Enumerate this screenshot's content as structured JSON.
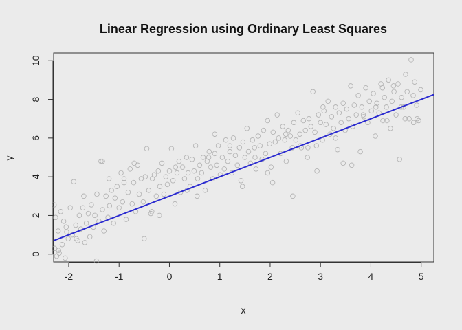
{
  "chart_data": {
    "type": "scatter",
    "title": "Linear Regression using Ordinary Least Squares",
    "xlabel": "x",
    "ylabel": "y",
    "xlim": [
      -2.3,
      5.25
    ],
    "ylim": [
      -0.4,
      10.4
    ],
    "xticks": [
      -2,
      -1,
      0,
      1,
      2,
      3,
      4,
      5
    ],
    "yticks": [
      0,
      2,
      4,
      6,
      8,
      10
    ],
    "grid": false,
    "legend": "none",
    "colors": {
      "points": "#b4b4b4",
      "line": "#2b2bd0",
      "background": "#ebebeb",
      "axes": "#333333"
    },
    "regression_line": {
      "intercept": 3.0,
      "slope": 1.0,
      "x": [
        -2.3,
        5.25
      ],
      "y": [
        0.7,
        8.25
      ]
    },
    "series": [
      {
        "x": [
          -2.29,
          -2.28,
          -2.26,
          -2.24,
          -2.21,
          -2.19,
          -2.16,
          -2.13,
          -2.1,
          -2.07,
          -2.04,
          -2.01,
          -1.97,
          -1.93,
          -1.9,
          -1.86,
          -1.82,
          -1.79,
          -1.76,
          -1.72,
          -1.68,
          -1.65,
          -1.61,
          -1.58,
          -1.55,
          -1.51,
          -1.48,
          -1.44,
          -1.4,
          -1.36,
          -1.33,
          -1.3,
          -1.26,
          -1.22,
          -1.19,
          -1.15,
          -1.11,
          -1.08,
          -1.04,
          -1.0,
          -0.96,
          -0.93,
          -0.9,
          -0.86,
          -0.82,
          -0.78,
          -0.74,
          -0.71,
          -0.67,
          -0.63,
          -0.6,
          -0.56,
          -0.52,
          -0.48,
          -0.45,
          -0.41,
          -0.37,
          -0.34,
          -0.3,
          -0.26,
          -0.22,
          -0.19,
          -0.15,
          -0.11,
          -0.07,
          -0.04,
          0.0,
          0.04,
          0.07,
          0.11,
          0.15,
          0.19,
          0.22,
          0.26,
          0.3,
          0.34,
          0.37,
          0.41,
          0.45,
          0.49,
          0.52,
          0.56,
          0.6,
          0.64,
          0.67,
          0.71,
          0.75,
          0.79,
          0.82,
          0.86,
          0.9,
          0.94,
          0.97,
          1.01,
          1.05,
          1.09,
          1.12,
          1.16,
          1.2,
          1.24,
          1.27,
          1.31,
          1.35,
          1.39,
          1.42,
          1.46,
          1.5,
          1.54,
          1.57,
          1.61,
          1.65,
          1.69,
          1.72,
          1.76,
          1.8,
          1.84,
          1.87,
          1.91,
          1.95,
          1.99,
          2.02,
          2.06,
          2.1,
          2.14,
          2.17,
          2.21,
          2.25,
          2.29,
          2.32,
          2.36,
          2.4,
          2.44,
          2.47,
          2.51,
          2.55,
          2.59,
          2.62,
          2.66,
          2.7,
          2.74,
          2.77,
          2.81,
          2.85,
          2.89,
          2.92,
          2.96,
          3.0,
          3.04,
          3.07,
          3.11,
          3.15,
          3.19,
          3.22,
          3.26,
          3.3,
          3.34,
          3.37,
          3.41,
          3.45,
          3.49,
          3.52,
          3.56,
          3.6,
          3.64,
          3.67,
          3.71,
          3.75,
          3.79,
          3.82,
          3.86,
          3.9,
          3.94,
          3.97,
          4.01,
          4.05,
          4.09,
          4.12,
          4.16,
          4.2,
          4.24,
          4.27,
          4.31,
          4.35,
          4.39,
          4.42,
          4.46,
          4.5,
          4.54,
          4.57,
          4.61,
          4.65,
          4.69,
          4.72,
          4.76,
          4.8,
          4.84,
          4.87,
          4.91,
          4.95,
          4.99,
          -1.85,
          -1.33,
          -0.35,
          0.12,
          1.45,
          2.31,
          2.93,
          3.62,
          4.23,
          4.68,
          -2.2,
          -1.7,
          -0.9,
          -0.5,
          0.35,
          0.9,
          1.7,
          2.45,
          3.05,
          3.85,
          4.45,
          4.85,
          -2.05,
          -1.2,
          -0.7,
          0.55,
          1.2,
          2.05,
          2.75,
          3.3,
          4.1,
          4.6,
          -1.45,
          -0.2,
          0.78,
          1.95,
          2.6,
          3.45,
          4.32,
          4.92
        ],
        "y": [
          2.55,
          0.3,
          1.9,
          -0.1,
          1.2,
          0.05,
          2.2,
          0.5,
          1.7,
          -0.2,
          1.15,
          0.8,
          2.4,
          1.0,
          3.75,
          1.5,
          0.7,
          2.0,
          1.3,
          2.4,
          0.6,
          1.6,
          2.1,
          0.9,
          2.55,
          1.4,
          2.0,
          3.1,
          1.7,
          4.8,
          2.3,
          1.2,
          3.0,
          1.9,
          2.5,
          3.3,
          1.6,
          2.9,
          3.5,
          2.4,
          4.2,
          2.7,
          3.9,
          1.8,
          3.2,
          4.4,
          2.6,
          3.7,
          2.2,
          4.6,
          3.1,
          3.9,
          2.7,
          4.0,
          5.45,
          3.3,
          2.1,
          3.9,
          4.1,
          3.0,
          4.3,
          3.5,
          4.7,
          3.1,
          4.0,
          3.6,
          4.3,
          5.45,
          3.8,
          2.6,
          4.2,
          4.8,
          3.2,
          4.5,
          3.9,
          5.0,
          4.2,
          3.5,
          4.9,
          4.3,
          5.6,
          3.9,
          4.6,
          4.2,
          5.0,
          3.3,
          4.8,
          5.3,
          4.5,
          3.9,
          5.2,
          4.6,
          5.6,
          4.1,
          5.0,
          4.4,
          5.9,
          4.8,
          5.3,
          4.2,
          6.0,
          5.1,
          4.6,
          5.5,
          3.8,
          5.8,
          5.0,
          6.5,
          5.3,
          4.7,
          5.9,
          5.5,
          4.4,
          6.1,
          5.6,
          4.9,
          6.4,
          5.2,
          6.9,
          5.7,
          4.5,
          6.3,
          5.8,
          7.2,
          6.0,
          5.2,
          6.6,
          5.9,
          4.8,
          6.4,
          6.1,
          5.5,
          6.8,
          5.9,
          7.3,
          6.2,
          5.5,
          6.9,
          6.4,
          5.0,
          7.0,
          6.6,
          8.4,
          6.3,
          5.6,
          7.2,
          6.8,
          5.9,
          7.4,
          6.7,
          7.9,
          6.2,
          7.1,
          6.5,
          7.6,
          5.4,
          7.3,
          6.8,
          7.8,
          6.4,
          7.5,
          7.0,
          8.7,
          6.6,
          7.7,
          7.2,
          8.2,
          5.3,
          7.6,
          7.1,
          8.6,
          6.8,
          7.9,
          7.4,
          8.3,
          6.1,
          7.8,
          7.3,
          8.8,
          6.9,
          8.1,
          7.6,
          9.0,
          6.5,
          7.9,
          8.4,
          7.2,
          8.8,
          4.9,
          8.1,
          7.6,
          9.3,
          8.4,
          7.0,
          10.05,
          8.2,
          8.9,
          7.7,
          6.9,
          8.5,
          0.8,
          4.8,
          2.2,
          4.5,
          3.5,
          6.2,
          4.3,
          4.6,
          8.6,
          7.0,
          0.2,
          3.0,
          3.7,
          0.8,
          3.3,
          6.2,
          5.0,
          3.0,
          7.6,
          7.2,
          8.7,
          6.8,
          1.4,
          3.9,
          4.7,
          3.0,
          5.6,
          3.7,
          5.5,
          6.0,
          7.6,
          7.6,
          -0.35,
          2.0,
          5.0,
          4.2,
          5.6,
          4.7,
          6.9,
          7.0
        ]
      }
    ]
  }
}
